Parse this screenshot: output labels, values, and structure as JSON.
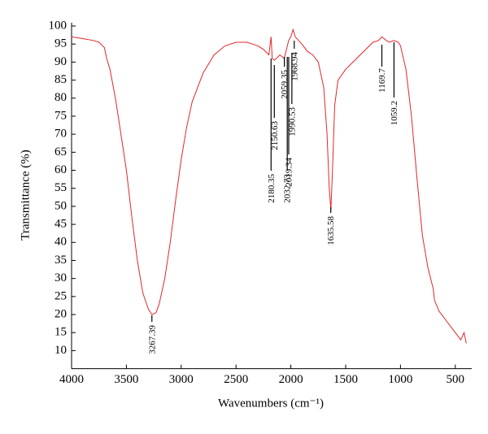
{
  "chart_data": {
    "type": "line",
    "x_label": "Wavenumbers (cm⁻¹)",
    "y_label": "Transmittance (%)",
    "xlim": [
      4000,
      350
    ],
    "ylim": [
      5,
      100
    ],
    "xticks": [
      4000,
      3500,
      3000,
      2500,
      2000,
      1500,
      1000,
      500
    ],
    "yticks": [
      10,
      15,
      20,
      25,
      30,
      35,
      40,
      45,
      50,
      55,
      60,
      65,
      70,
      75,
      80,
      85,
      90,
      95,
      100
    ],
    "series": [
      {
        "color": "#e3262b",
        "x": [
          4000,
          3900,
          3800,
          3750,
          3700,
          3680,
          3650,
          3600,
          3550,
          3500,
          3450,
          3400,
          3350,
          3300,
          3267,
          3230,
          3200,
          3150,
          3100,
          3050,
          3000,
          2950,
          2900,
          2800,
          2700,
          2600,
          2500,
          2400,
          2300,
          2250,
          2200,
          2180,
          2170,
          2150,
          2100,
          2060,
          2040,
          2020,
          2000,
          1980,
          1960,
          1900,
          1850,
          1800,
          1750,
          1700,
          1670,
          1650,
          1635,
          1620,
          1600,
          1570,
          1500,
          1400,
          1300,
          1250,
          1200,
          1170,
          1130,
          1100,
          1060,
          1020,
          1000,
          950,
          900,
          850,
          800,
          750,
          700,
          690,
          650,
          600,
          550,
          500,
          450,
          420,
          400
        ],
        "values": [
          97,
          96.5,
          96,
          95.5,
          94,
          91,
          88,
          80,
          70,
          60,
          47,
          35,
          26,
          21.5,
          20,
          20.5,
          23,
          30,
          40,
          52,
          63,
          72,
          79,
          87,
          92,
          94.5,
          95.5,
          95.5,
          94.5,
          93.5,
          92,
          97,
          91,
          90.5,
          92,
          91,
          93.5,
          96,
          97,
          99,
          97,
          95,
          93,
          92,
          90,
          83,
          70,
          55,
          49,
          60,
          78,
          85,
          88,
          91,
          94,
          95.5,
          96,
          97,
          96,
          95.5,
          96,
          95.5,
          94.5,
          88,
          75,
          58,
          42,
          33,
          27,
          24,
          21,
          19,
          17,
          15,
          13,
          15,
          12
        ]
      }
    ],
    "peaks": [
      3267.39,
      2180.35,
      2150.63,
      2059.35,
      2032.73,
      2019.34,
      1990.53,
      1968.94,
      1635.58,
      1169.7,
      1059.2
    ]
  }
}
